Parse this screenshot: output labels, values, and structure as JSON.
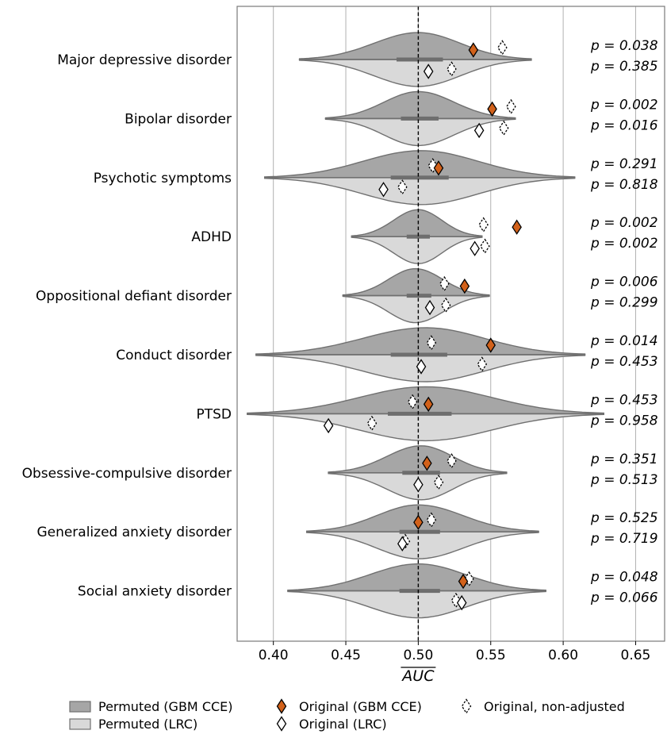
{
  "chart_data": {
    "type": "violin",
    "xlabel": "AUC",
    "xlabel_overline": true,
    "xlim": [
      0.375,
      0.67
    ],
    "xticks": [
      0.4,
      0.45,
      0.5,
      0.55,
      0.6,
      0.65
    ],
    "xtick_labels": [
      "0.40",
      "0.45",
      "0.50",
      "0.55",
      "0.60",
      "0.65"
    ],
    "reference_line": 0.5,
    "grid": "vertical",
    "legend_position": "bottom",
    "legend": [
      {
        "key": "perm_gbm",
        "label": "Permuted (GBM CCE)",
        "marker": "box",
        "color": "#a6a6a6"
      },
      {
        "key": "orig_gbm",
        "label": "Original (GBM CCE)",
        "marker": "diamond-filled",
        "color": "#d2611a"
      },
      {
        "key": "orig_nonadj",
        "label": "Original, non-adjusted",
        "marker": "diamond-dashed",
        "color": "#ffffff"
      },
      {
        "key": "perm_lrc",
        "label": "Permuted (LRC)",
        "marker": "box",
        "color": "#d9d9d9"
      },
      {
        "key": "orig_lrc",
        "label": "Original (LRC)",
        "marker": "diamond-open",
        "color": "#ffffff"
      }
    ],
    "colors": {
      "gbm_violin": "#a6a6a6",
      "lrc_violin": "#d9d9d9",
      "gbm_original": "#d2611a",
      "violin_edge": "#707070"
    },
    "categories": [
      "Major depressive disorder",
      "Bipolar disorder",
      "Psychotic symptoms",
      "ADHD",
      "Oppositional defiant disorder",
      "Conduct disorder",
      "PTSD",
      "Obsessive-compulsive disorder",
      "Generalized anxiety disorder",
      "Social anxiety disorder"
    ],
    "rows": [
      {
        "gbm": {
          "min": 0.418,
          "max": 0.578,
          "center": 0.5,
          "q1": 0.485,
          "q3": 0.517,
          "orig": 0.538,
          "nonadj": 0.558
        },
        "lrc": {
          "min": 0.418,
          "max": 0.578,
          "center": 0.5,
          "q1": 0.485,
          "q3": 0.517,
          "orig": 0.507,
          "nonadj": 0.523
        },
        "p_gbm": "p = 0.038",
        "p_lrc": "p = 0.385"
      },
      {
        "gbm": {
          "min": 0.436,
          "max": 0.567,
          "center": 0.5,
          "q1": 0.488,
          "q3": 0.514,
          "orig": 0.551,
          "nonadj": 0.564
        },
        "lrc": {
          "min": 0.436,
          "max": 0.567,
          "center": 0.5,
          "q1": 0.488,
          "q3": 0.514,
          "orig": 0.542,
          "nonadj": 0.559
        },
        "p_gbm": "p = 0.002",
        "p_lrc": "p = 0.016"
      },
      {
        "gbm": {
          "min": 0.394,
          "max": 0.608,
          "center": 0.502,
          "q1": 0.481,
          "q3": 0.521,
          "orig": 0.514,
          "nonadj": 0.51
        },
        "lrc": {
          "min": 0.394,
          "max": 0.608,
          "center": 0.502,
          "q1": 0.481,
          "q3": 0.521,
          "orig": 0.476,
          "nonadj": 0.489
        },
        "p_gbm": "p = 0.291",
        "p_lrc": "p = 0.818"
      },
      {
        "gbm": {
          "min": 0.454,
          "max": 0.544,
          "center": 0.5,
          "q1": 0.492,
          "q3": 0.508,
          "orig": 0.568,
          "nonadj": 0.545
        },
        "lrc": {
          "min": 0.454,
          "max": 0.544,
          "center": 0.5,
          "q1": 0.492,
          "q3": 0.508,
          "orig": 0.539,
          "nonadj": 0.546
        },
        "p_gbm": "p = 0.002",
        "p_lrc": "p = 0.002"
      },
      {
        "gbm": {
          "min": 0.448,
          "max": 0.549,
          "center": 0.498,
          "q1": 0.492,
          "q3": 0.509,
          "orig": 0.532,
          "nonadj": 0.518
        },
        "lrc": {
          "min": 0.448,
          "max": 0.549,
          "center": 0.498,
          "q1": 0.492,
          "q3": 0.509,
          "orig": 0.508,
          "nonadj": 0.519
        },
        "p_gbm": "p = 0.006",
        "p_lrc": "p = 0.299"
      },
      {
        "gbm": {
          "min": 0.388,
          "max": 0.615,
          "center": 0.505,
          "q1": 0.481,
          "q3": 0.52,
          "orig": 0.55,
          "nonadj": 0.509
        },
        "lrc": {
          "min": 0.388,
          "max": 0.615,
          "center": 0.505,
          "q1": 0.481,
          "q3": 0.52,
          "orig": 0.502,
          "nonadj": 0.544
        },
        "p_gbm": "p = 0.014",
        "p_lrc": "p = 0.453"
      },
      {
        "gbm": {
          "min": 0.382,
          "max": 0.628,
          "center": 0.505,
          "q1": 0.479,
          "q3": 0.523,
          "orig": 0.507,
          "nonadj": 0.496
        },
        "lrc": {
          "min": 0.382,
          "max": 0.628,
          "center": 0.505,
          "q1": 0.479,
          "q3": 0.523,
          "orig": 0.438,
          "nonadj": 0.468
        },
        "p_gbm": "p = 0.453",
        "p_lrc": "p = 0.958"
      },
      {
        "gbm": {
          "min": 0.438,
          "max": 0.561,
          "center": 0.502,
          "q1": 0.489,
          "q3": 0.515,
          "orig": 0.506,
          "nonadj": 0.523
        },
        "lrc": {
          "min": 0.438,
          "max": 0.561,
          "center": 0.502,
          "q1": 0.489,
          "q3": 0.515,
          "orig": 0.5,
          "nonadj": 0.514
        },
        "p_gbm": "p = 0.351",
        "p_lrc": "p = 0.513"
      },
      {
        "gbm": {
          "min": 0.423,
          "max": 0.583,
          "center": 0.5,
          "q1": 0.487,
          "q3": 0.515,
          "orig": 0.5,
          "nonadj": 0.509
        },
        "lrc": {
          "min": 0.423,
          "max": 0.583,
          "center": 0.5,
          "q1": 0.487,
          "q3": 0.515,
          "orig": 0.489,
          "nonadj": 0.491
        },
        "p_gbm": "p = 0.525",
        "p_lrc": "p = 0.719"
      },
      {
        "gbm": {
          "min": 0.41,
          "max": 0.588,
          "center": 0.5,
          "q1": 0.487,
          "q3": 0.515,
          "orig": 0.531,
          "nonadj": 0.535
        },
        "lrc": {
          "min": 0.41,
          "max": 0.588,
          "center": 0.5,
          "q1": 0.487,
          "q3": 0.515,
          "orig": 0.53,
          "nonadj": 0.526
        },
        "p_gbm": "p = 0.048",
        "p_lrc": "p = 0.066"
      }
    ]
  }
}
